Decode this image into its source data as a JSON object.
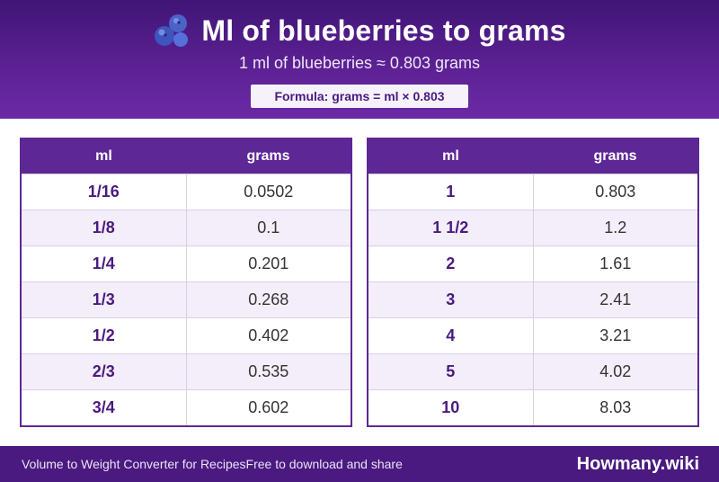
{
  "header": {
    "title": "Ml of blueberries to grams",
    "icon": "blueberries-icon",
    "subtitle": "1 ml of blueberries ≈ 0.803 grams",
    "formula": "Formula: grams = ml × 0.803"
  },
  "colors": {
    "header": "#5b2192",
    "table_header": "#5e2796",
    "accent_text": "#4a1a80",
    "row_alt": "#f3eef9",
    "footer": "#4a1a80"
  },
  "tables": {
    "left": {
      "headers": [
        "ml",
        "grams"
      ],
      "rows": [
        [
          "1/16",
          "0.0502"
        ],
        [
          "1/8",
          "0.1"
        ],
        [
          "1/4",
          "0.201"
        ],
        [
          "1/3",
          "0.268"
        ],
        [
          "1/2",
          "0.402"
        ],
        [
          "2/3",
          "0.535"
        ],
        [
          "3/4",
          "0.602"
        ]
      ]
    },
    "right": {
      "headers": [
        "ml",
        "grams"
      ],
      "rows": [
        [
          "1",
          "0.803"
        ],
        [
          "1 1/2",
          "1.2"
        ],
        [
          "2",
          "1.61"
        ],
        [
          "3",
          "2.41"
        ],
        [
          "4",
          "3.21"
        ],
        [
          "5",
          "4.02"
        ],
        [
          "10",
          "8.03"
        ]
      ]
    }
  },
  "footer": {
    "left_text": "Volume to Weight Converter for Recipes",
    "middle_text": "Free to download and share",
    "brand": "Howmany.wiki"
  }
}
